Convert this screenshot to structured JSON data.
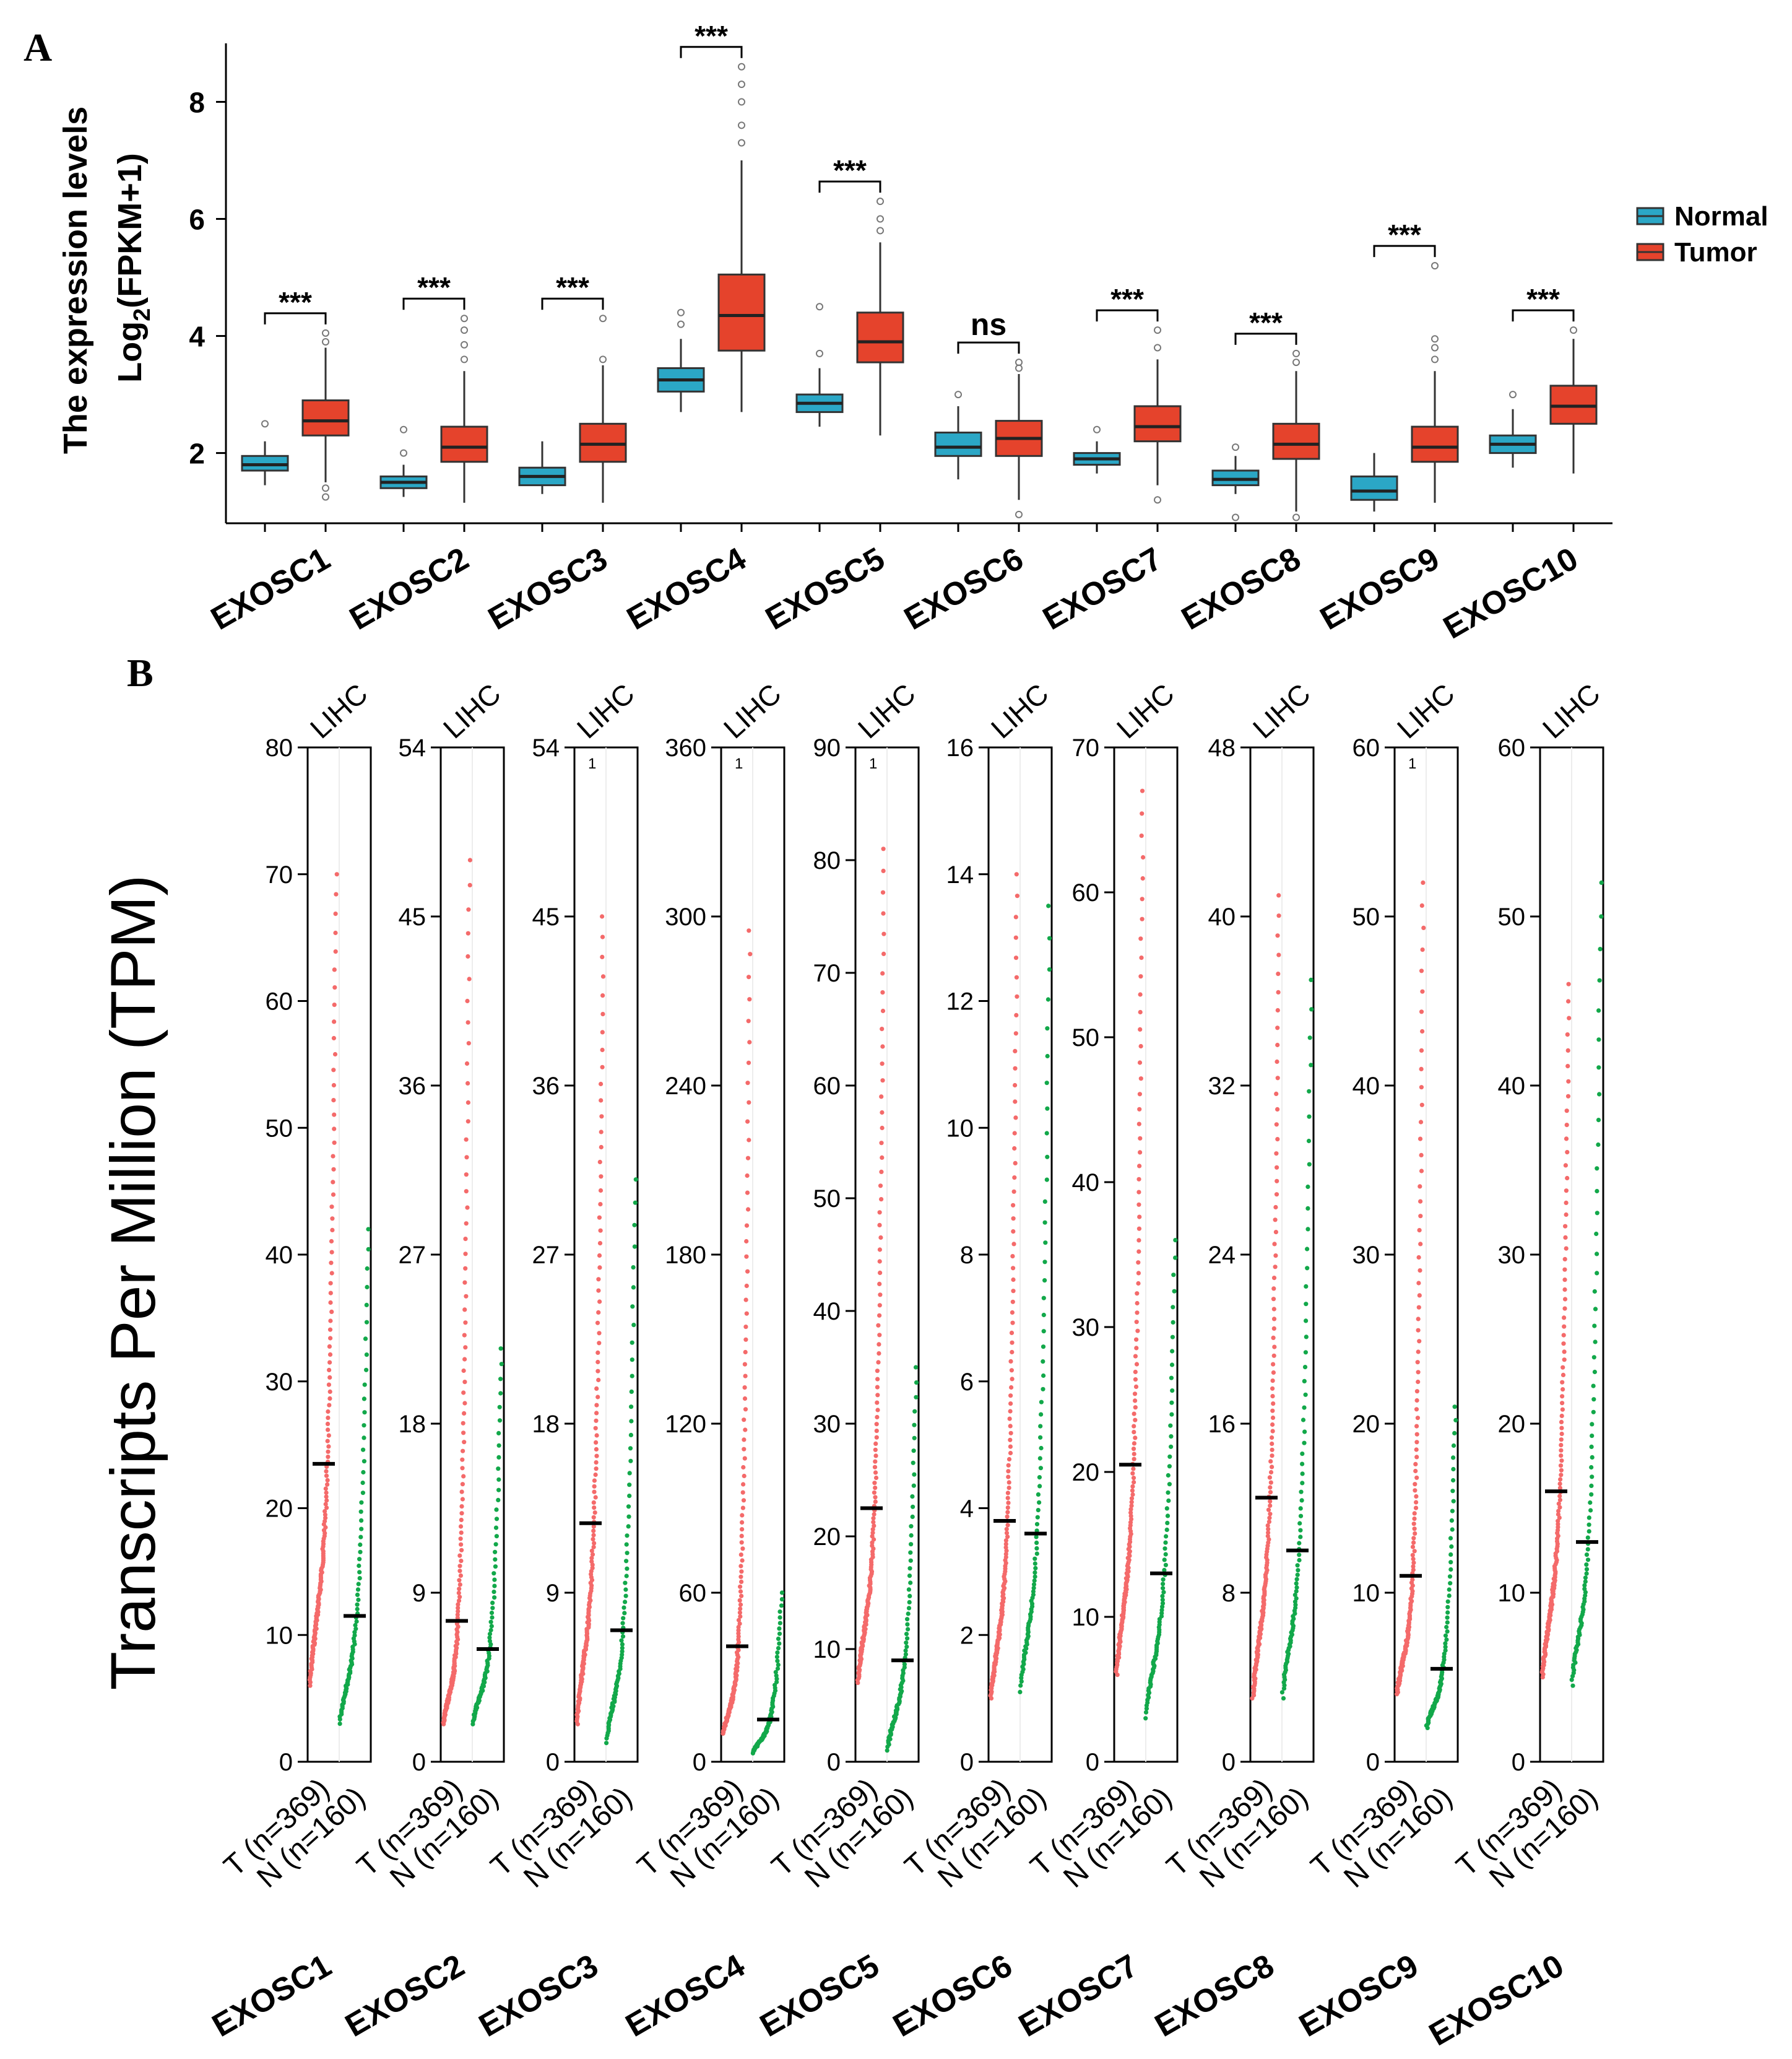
{
  "figure": {
    "panel_a_letter": "A",
    "panel_b_letter": "B"
  },
  "colors": {
    "normal": "#2ba7c6",
    "tumor": "#e5432c",
    "tumor_dot": "#f46a6a",
    "normal_dot": "#12a84a",
    "highlight": "#f46a6a"
  },
  "chart_data": [
    {
      "type": "box",
      "panel": "A",
      "ylabel_line1": "The  expression levels",
      "ylabel_line2_prefix": "Log",
      "ylabel_line2_sub": "2",
      "ylabel_line2_suffix": "(FPKM+1)",
      "ylim": [
        0.8,
        9.0
      ],
      "yticks": [
        2,
        4,
        6,
        8
      ],
      "categories": [
        "EXOSC1",
        "EXOSC2",
        "EXOSC3",
        "EXOSC4",
        "EXOSC5",
        "EXOSC6",
        "EXOSC7",
        "EXOSC8",
        "EXOSC9",
        "EXOSC10"
      ],
      "legend": {
        "position": "right",
        "entries": [
          "Normal",
          "Tumor"
        ]
      },
      "significance": [
        "***",
        "***",
        "***",
        "***",
        "***",
        "ns",
        "***",
        "***",
        "***",
        "***"
      ],
      "series": [
        {
          "name": "Normal",
          "boxes": [
            {
              "lo": 1.45,
              "q1": 1.7,
              "med": 1.8,
              "q3": 1.95,
              "hi": 2.2,
              "out": [
                2.5
              ]
            },
            {
              "lo": 1.25,
              "q1": 1.4,
              "med": 1.5,
              "q3": 1.6,
              "hi": 1.8,
              "out": [
                2.0,
                2.4
              ]
            },
            {
              "lo": 1.3,
              "q1": 1.45,
              "med": 1.6,
              "q3": 1.75,
              "hi": 2.2,
              "out": []
            },
            {
              "lo": 2.7,
              "q1": 3.05,
              "med": 3.25,
              "q3": 3.45,
              "hi": 3.95,
              "out": [
                4.2,
                4.4
              ]
            },
            {
              "lo": 2.45,
              "q1": 2.7,
              "med": 2.85,
              "q3": 3.0,
              "hi": 3.45,
              "out": [
                3.7,
                4.5
              ]
            },
            {
              "lo": 1.55,
              "q1": 1.95,
              "med": 2.1,
              "q3": 2.35,
              "hi": 2.8,
              "out": [
                3.0
              ]
            },
            {
              "lo": 1.65,
              "q1": 1.8,
              "med": 1.9,
              "q3": 2.0,
              "hi": 2.2,
              "out": [
                2.4
              ]
            },
            {
              "lo": 1.3,
              "q1": 1.45,
              "med": 1.55,
              "q3": 1.7,
              "hi": 1.95,
              "out": [
                0.9,
                2.1
              ]
            },
            {
              "lo": 1.0,
              "q1": 1.2,
              "med": 1.35,
              "q3": 1.6,
              "hi": 2.0,
              "out": []
            },
            {
              "lo": 1.75,
              "q1": 2.0,
              "med": 2.15,
              "q3": 2.3,
              "hi": 2.75,
              "out": [
                3.0
              ]
            }
          ]
        },
        {
          "name": "Tumor",
          "boxes": [
            {
              "lo": 1.5,
              "q1": 2.3,
              "med": 2.55,
              "q3": 2.9,
              "hi": 3.8,
              "out": [
                1.25,
                1.4,
                3.9,
                4.05
              ]
            },
            {
              "lo": 1.15,
              "q1": 1.85,
              "med": 2.1,
              "q3": 2.45,
              "hi": 3.4,
              "out": [
                3.6,
                3.85,
                4.1,
                4.3
              ]
            },
            {
              "lo": 1.15,
              "q1": 1.85,
              "med": 2.15,
              "q3": 2.5,
              "hi": 3.5,
              "out": [
                3.6,
                4.3
              ]
            },
            {
              "lo": 2.7,
              "q1": 3.75,
              "med": 4.35,
              "q3": 5.05,
              "hi": 7.0,
              "out": [
                7.3,
                7.6,
                8.0,
                8.3,
                8.6
              ]
            },
            {
              "lo": 2.3,
              "q1": 3.55,
              "med": 3.9,
              "q3": 4.4,
              "hi": 5.6,
              "out": [
                5.8,
                6.0,
                6.3
              ]
            },
            {
              "lo": 1.2,
              "q1": 1.95,
              "med": 2.25,
              "q3": 2.55,
              "hi": 3.35,
              "out": [
                0.95,
                3.45,
                3.55
              ]
            },
            {
              "lo": 1.45,
              "q1": 2.2,
              "med": 2.45,
              "q3": 2.8,
              "hi": 3.6,
              "out": [
                1.2,
                3.8,
                4.1
              ]
            },
            {
              "lo": 1.0,
              "q1": 1.9,
              "med": 2.15,
              "q3": 2.5,
              "hi": 3.4,
              "out": [
                0.9,
                3.55,
                3.7
              ]
            },
            {
              "lo": 1.15,
              "q1": 1.85,
              "med": 2.1,
              "q3": 2.45,
              "hi": 3.4,
              "out": [
                3.6,
                3.8,
                3.95,
                5.2
              ]
            },
            {
              "lo": 1.65,
              "q1": 2.5,
              "med": 2.8,
              "q3": 3.15,
              "hi": 3.95,
              "out": [
                4.1
              ]
            }
          ]
        }
      ]
    },
    {
      "type": "scatter",
      "panel": "B",
      "ylabel": "Transcripts Per Million (TPM)",
      "cancer_label": "LIHC",
      "group_tumor_label": "T (n=369)",
      "group_normal_label": "N (n=160)",
      "group_tumor_n": 369,
      "group_normal_n": 160,
      "panels": [
        {
          "gene": "EXOSC1",
          "ymax": 80,
          "ticks": [
            0,
            10,
            20,
            30,
            40,
            50,
            60,
            70,
            80
          ],
          "t_median": 23.5,
          "n_median": 11.5,
          "t_min": 6,
          "t_max": 70,
          "n_min": 3,
          "n_max": 42,
          "sig": false,
          "marker": ""
        },
        {
          "gene": "EXOSC2",
          "ymax": 54,
          "ticks": [
            0,
            9,
            18,
            27,
            36,
            45,
            54
          ],
          "t_median": 7.5,
          "n_median": 6,
          "t_min": 2,
          "t_max": 48,
          "n_min": 2,
          "n_max": 22,
          "sig": false,
          "marker": ""
        },
        {
          "gene": "EXOSC3",
          "ymax": 54,
          "ticks": [
            0,
            9,
            18,
            27,
            36,
            45,
            54
          ],
          "t_median": 12.7,
          "n_median": 7,
          "t_min": 2,
          "t_max": 45,
          "n_min": 1,
          "n_max": 31,
          "sig": false,
          "marker": "1"
        },
        {
          "gene": "EXOSC4",
          "ymax": 360,
          "ticks": [
            0,
            60,
            120,
            180,
            240,
            300,
            360
          ],
          "t_median": 41,
          "n_median": 15,
          "t_min": 10,
          "t_max": 295,
          "n_min": 3,
          "n_max": 60,
          "sig": true,
          "marker": "1"
        },
        {
          "gene": "EXOSC5",
          "ymax": 90,
          "ticks": [
            0,
            10,
            20,
            30,
            40,
            50,
            60,
            70,
            80,
            90
          ],
          "t_median": 22.5,
          "n_median": 9,
          "t_min": 7,
          "t_max": 81,
          "n_min": 1,
          "n_max": 35,
          "sig": true,
          "marker": "1"
        },
        {
          "gene": "EXOSC6",
          "ymax": 16,
          "ticks": [
            0,
            2,
            4,
            6,
            8,
            10,
            12,
            14,
            16
          ],
          "t_median": 3.8,
          "n_median": 3.6,
          "t_min": 1,
          "t_max": 14,
          "n_min": 1.1,
          "n_max": 13.5,
          "sig": false,
          "marker": ""
        },
        {
          "gene": "EXOSC7",
          "ymax": 70,
          "ticks": [
            0,
            10,
            20,
            30,
            40,
            50,
            60,
            70
          ],
          "t_median": 20.5,
          "n_median": 13,
          "t_min": 6,
          "t_max": 67,
          "n_min": 3,
          "n_max": 36,
          "sig": false,
          "marker": ""
        },
        {
          "gene": "EXOSC8",
          "ymax": 48,
          "ticks": [
            0,
            8,
            16,
            24,
            32,
            40,
            48
          ],
          "t_median": 12.5,
          "n_median": 10,
          "t_min": 3,
          "t_max": 41,
          "n_min": 3,
          "n_max": 37,
          "sig": false,
          "marker": ""
        },
        {
          "gene": "EXOSC9",
          "ymax": 60,
          "ticks": [
            0,
            10,
            20,
            30,
            40,
            50,
            60
          ],
          "t_median": 11,
          "n_median": 5.5,
          "t_min": 4,
          "t_max": 52,
          "n_min": 2,
          "n_max": 21,
          "sig": false,
          "marker": "1"
        },
        {
          "gene": "EXOSC10",
          "ymax": 60,
          "ticks": [
            0,
            10,
            20,
            30,
            40,
            50,
            60
          ],
          "t_median": 16,
          "n_median": 13,
          "t_min": 5,
          "t_max": 46,
          "n_min": 4.5,
          "n_max": 52,
          "sig": false,
          "marker": ""
        }
      ]
    }
  ]
}
